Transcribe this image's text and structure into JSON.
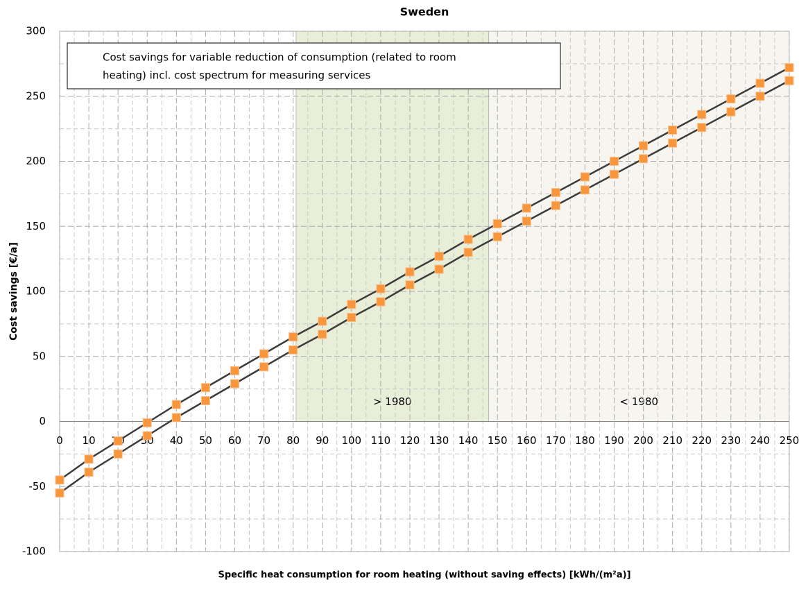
{
  "chart_data": {
    "type": "line",
    "title": "Sweden",
    "x_label": "Specific heat consumption for room heating (without saving effects) [kWh/(m²a)]",
    "y_label": "Cost savings [€/a]",
    "legend_lines": [
      "Cost savings for variable reduction of consumption (related to room",
      "heating) incl. cost spectrum for measuring services"
    ],
    "x": [
      0,
      10,
      20,
      30,
      40,
      50,
      60,
      70,
      80,
      90,
      100,
      110,
      120,
      130,
      140,
      150,
      160,
      170,
      180,
      190,
      200,
      210,
      220,
      230,
      240,
      250
    ],
    "series": [
      {
        "color": "#f7963c",
        "line_color": "#3c3c3c",
        "values": [
          -45,
          -29,
          -15,
          -1,
          13,
          26,
          39,
          52,
          65,
          77,
          90,
          102,
          115,
          127,
          140,
          152,
          164,
          176,
          188,
          200,
          212,
          224,
          236,
          248,
          260,
          272
        ]
      },
      {
        "color": "#f7963c",
        "line_color": "#3c3c3c",
        "values": [
          -55,
          -39,
          -25,
          -11,
          3,
          16,
          29,
          42,
          55,
          67,
          80,
          92,
          105,
          117,
          130,
          142,
          154,
          166,
          178,
          190,
          202,
          214,
          226,
          238,
          250,
          262
        ]
      }
    ],
    "regions": [
      {
        "label": "> 1980",
        "from": 81,
        "to": 147,
        "color": "#e8eed8"
      },
      {
        "label": "< 1980",
        "from": 147,
        "to": 250,
        "color": "#f6f5f0"
      }
    ],
    "xlim": [
      0,
      250
    ],
    "xticks": [
      0,
      10,
      20,
      30,
      40,
      50,
      60,
      70,
      80,
      90,
      100,
      110,
      120,
      130,
      140,
      150,
      160,
      170,
      180,
      190,
      200,
      210,
      220,
      230,
      240,
      250
    ],
    "ylim": [
      -100,
      300
    ],
    "yticks": [
      -100,
      -50,
      0,
      50,
      100,
      150,
      200,
      250,
      300
    ],
    "grid": true
  }
}
